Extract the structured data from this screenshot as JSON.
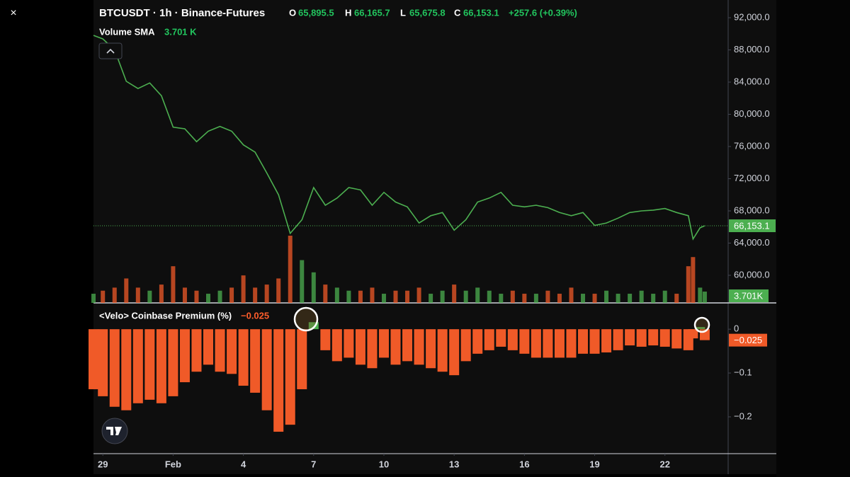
{
  "close_button": "×",
  "chart_data": [
    {
      "type": "line",
      "title": "BTCUSDT · 1h · Binance-Futures",
      "ohlc": [
        {
          "key": "O",
          "value": "65,895.5"
        },
        {
          "key": "H",
          "value": "66,165.7"
        },
        {
          "key": "L",
          "value": "65,675.8"
        },
        {
          "key": "C",
          "value": "66,153.1"
        }
      ],
      "change": "+257.6 (+0.39%)",
      "volume_title": "Volume SMA",
      "volume_value": "3.701 K",
      "last_label": "66,153.1",
      "volume_label": "3.701K",
      "x": [
        -0.4,
        0,
        0.5,
        1,
        1.5,
        2,
        2.5,
        3,
        3.5,
        4,
        4.5,
        5,
        5.5,
        6,
        6.5,
        7,
        7.5,
        8,
        8.5,
        9,
        9.5,
        10,
        10.5,
        11,
        11.5,
        12,
        12.5,
        13,
        13.5,
        14,
        14.5,
        15,
        15.5,
        16,
        16.5,
        17,
        17.5,
        18,
        18.5,
        19,
        19.5,
        20,
        20.5,
        21,
        21.5,
        22,
        22.5,
        23,
        23.5,
        24,
        24.5,
        25,
        25.2,
        25.5,
        25.7
      ],
      "values": [
        89800,
        89360,
        88000,
        84100,
        83200,
        83900,
        82300,
        78400,
        78200,
        76600,
        77900,
        78500,
        77900,
        76200,
        75300,
        72700,
        70000,
        65200,
        66900,
        70900,
        68700,
        69600,
        70900,
        70600,
        68700,
        70300,
        69100,
        68500,
        66500,
        67400,
        67800,
        65600,
        66900,
        69100,
        69600,
        70300,
        68700,
        68500,
        68700,
        68400,
        67800,
        67400,
        67800,
        66200,
        66500,
        67100,
        67800,
        68000,
        68100,
        68300,
        67800,
        67400,
        64500,
        65900,
        66153.1
      ],
      "volume": [
        3,
        4,
        5,
        8,
        5,
        4,
        6,
        12,
        5,
        4,
        3,
        4,
        5,
        9,
        5,
        6,
        8,
        22,
        14,
        10,
        6,
        5,
        4,
        4,
        5,
        3,
        4,
        4,
        5,
        3,
        4,
        6,
        4,
        5,
        4,
        3,
        4,
        3,
        3,
        4,
        3,
        5,
        3,
        3,
        4,
        3,
        3,
        4,
        3,
        4,
        3,
        12,
        15,
        5,
        3.701
      ],
      "color": "#4caf50",
      "down_color": "#f05a28",
      "xlim": [
        -0.4,
        26.7
      ],
      "ylim": [
        56570,
        94200
      ],
      "yticks": [
        {
          "value": 92000,
          "label": "92,000.0"
        },
        {
          "value": 88000,
          "label": "88,000.0"
        },
        {
          "value": 84000,
          "label": "84,000.0"
        },
        {
          "value": 80000,
          "label": "80,000.0"
        },
        {
          "value": 76000,
          "label": "76,000.0"
        },
        {
          "value": 72000,
          "label": "72,000.0"
        },
        {
          "value": 68000,
          "label": "68,000.0"
        },
        {
          "value": 64000,
          "label": "64,000.0"
        },
        {
          "value": 60000,
          "label": "60,000.0"
        }
      ]
    },
    {
      "type": "bar",
      "title": "<Velo> Coinbase Premium (%)",
      "value_label": "−0.025",
      "x": [
        -0.4,
        0,
        0.5,
        1,
        1.5,
        2,
        2.5,
        3,
        3.5,
        4,
        4.5,
        5,
        5.5,
        6,
        6.5,
        7,
        7.5,
        8,
        8.5,
        9,
        9.5,
        10,
        10.5,
        11,
        11.5,
        12,
        12.5,
        13,
        13.5,
        14,
        14.5,
        15,
        15.5,
        16,
        16.5,
        17,
        17.5,
        18,
        18.5,
        19,
        19.5,
        20,
        20.5,
        21,
        21.5,
        22,
        22.5,
        23,
        23.5,
        24,
        24.5,
        25,
        25.2,
        25.5,
        25.7
      ],
      "values": [
        -0.137,
        -0.153,
        -0.177,
        -0.185,
        -0.169,
        -0.161,
        -0.169,
        -0.153,
        -0.121,
        -0.097,
        -0.081,
        -0.097,
        -0.102,
        -0.129,
        -0.145,
        -0.185,
        -0.234,
        -0.218,
        -0.137,
        0.016,
        -0.048,
        -0.073,
        -0.065,
        -0.081,
        -0.089,
        -0.065,
        -0.081,
        -0.073,
        -0.081,
        -0.089,
        -0.097,
        -0.105,
        -0.073,
        -0.056,
        -0.048,
        -0.04,
        -0.048,
        -0.056,
        -0.065,
        -0.065,
        -0.065,
        -0.065,
        -0.056,
        -0.056,
        -0.053,
        -0.048,
        -0.037,
        -0.04,
        -0.037,
        -0.04,
        -0.044,
        -0.048,
        -0.021,
        0.005,
        -0.025
      ],
      "color": "#f05a28",
      "positive_color": "#4caf50",
      "xlim": [
        -0.4,
        26.7
      ],
      "ylim": [
        -0.284,
        0.06
      ],
      "yticks": [
        0,
        {
          "value": -0.1,
          "label": "−0.1"
        },
        {
          "value": -0.2,
          "label": "−0.2"
        }
      ],
      "xticks": [
        {
          "value": 0,
          "label": "29"
        },
        {
          "value": 3,
          "label": "Feb"
        },
        {
          "value": 6,
          "label": "4"
        },
        {
          "value": 9,
          "label": "7"
        },
        {
          "value": 12,
          "label": "10"
        },
        {
          "value": 15,
          "label": "13"
        },
        {
          "value": 18,
          "label": "16"
        },
        {
          "value": 21,
          "label": "19"
        },
        {
          "value": 24,
          "label": "22"
        }
      ]
    }
  ]
}
